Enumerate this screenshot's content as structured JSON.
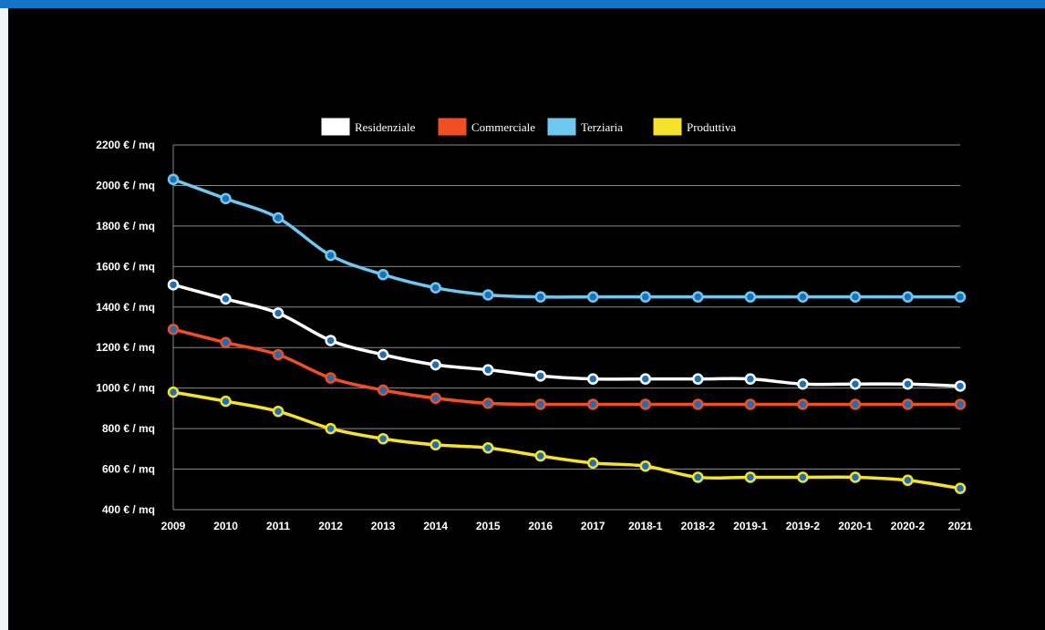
{
  "chart_data": {
    "type": "line",
    "title": "",
    "xlabel": "",
    "ylabel": "",
    "categories": [
      "2009",
      "2010",
      "2011",
      "2012",
      "2013",
      "2014",
      "2015",
      "2016",
      "2017",
      "2018-1",
      "2018-2",
      "2019-1",
      "2019-2",
      "2020-1",
      "2020-2",
      "2021"
    ],
    "ylim": [
      400,
      2200
    ],
    "yticks": [
      400,
      600,
      800,
      1000,
      1200,
      1400,
      1600,
      1800,
      2000,
      2200
    ],
    "ytick_labels": [
      "400 € / mq",
      "600 € / mq",
      "800 € / mq",
      "1000 € / mq",
      "1200 € / mq",
      "1400 € / mq",
      "1600 € / mq",
      "1800 € / mq",
      "2000 € / mq",
      "2200 € / mq"
    ],
    "grid": true,
    "legend_position": "top-center",
    "series": [
      {
        "name": "Residenziale",
        "color": "#ffffff",
        "values": [
          1510,
          1440,
          1370,
          1235,
          1165,
          1115,
          1090,
          1060,
          1045,
          1045,
          1045,
          1045,
          1020,
          1020,
          1020,
          1010
        ]
      },
      {
        "name": "Commerciale",
        "color": "#f04e23",
        "values": [
          1290,
          1225,
          1165,
          1050,
          990,
          950,
          925,
          920,
          920,
          920,
          920,
          920,
          920,
          920,
          920,
          920
        ]
      },
      {
        "name": "Terziaria",
        "color": "#6fc8f0",
        "values": [
          2030,
          1935,
          1840,
          1655,
          1560,
          1495,
          1460,
          1450,
          1450,
          1450,
          1450,
          1450,
          1450,
          1450,
          1450,
          1450
        ]
      },
      {
        "name": "Produttiva",
        "color": "#f5e22a",
        "values": [
          980,
          935,
          885,
          800,
          750,
          720,
          705,
          665,
          630,
          615,
          560,
          560,
          560,
          560,
          545,
          505
        ]
      }
    ],
    "marker_fill": "#1f6fb5"
  }
}
